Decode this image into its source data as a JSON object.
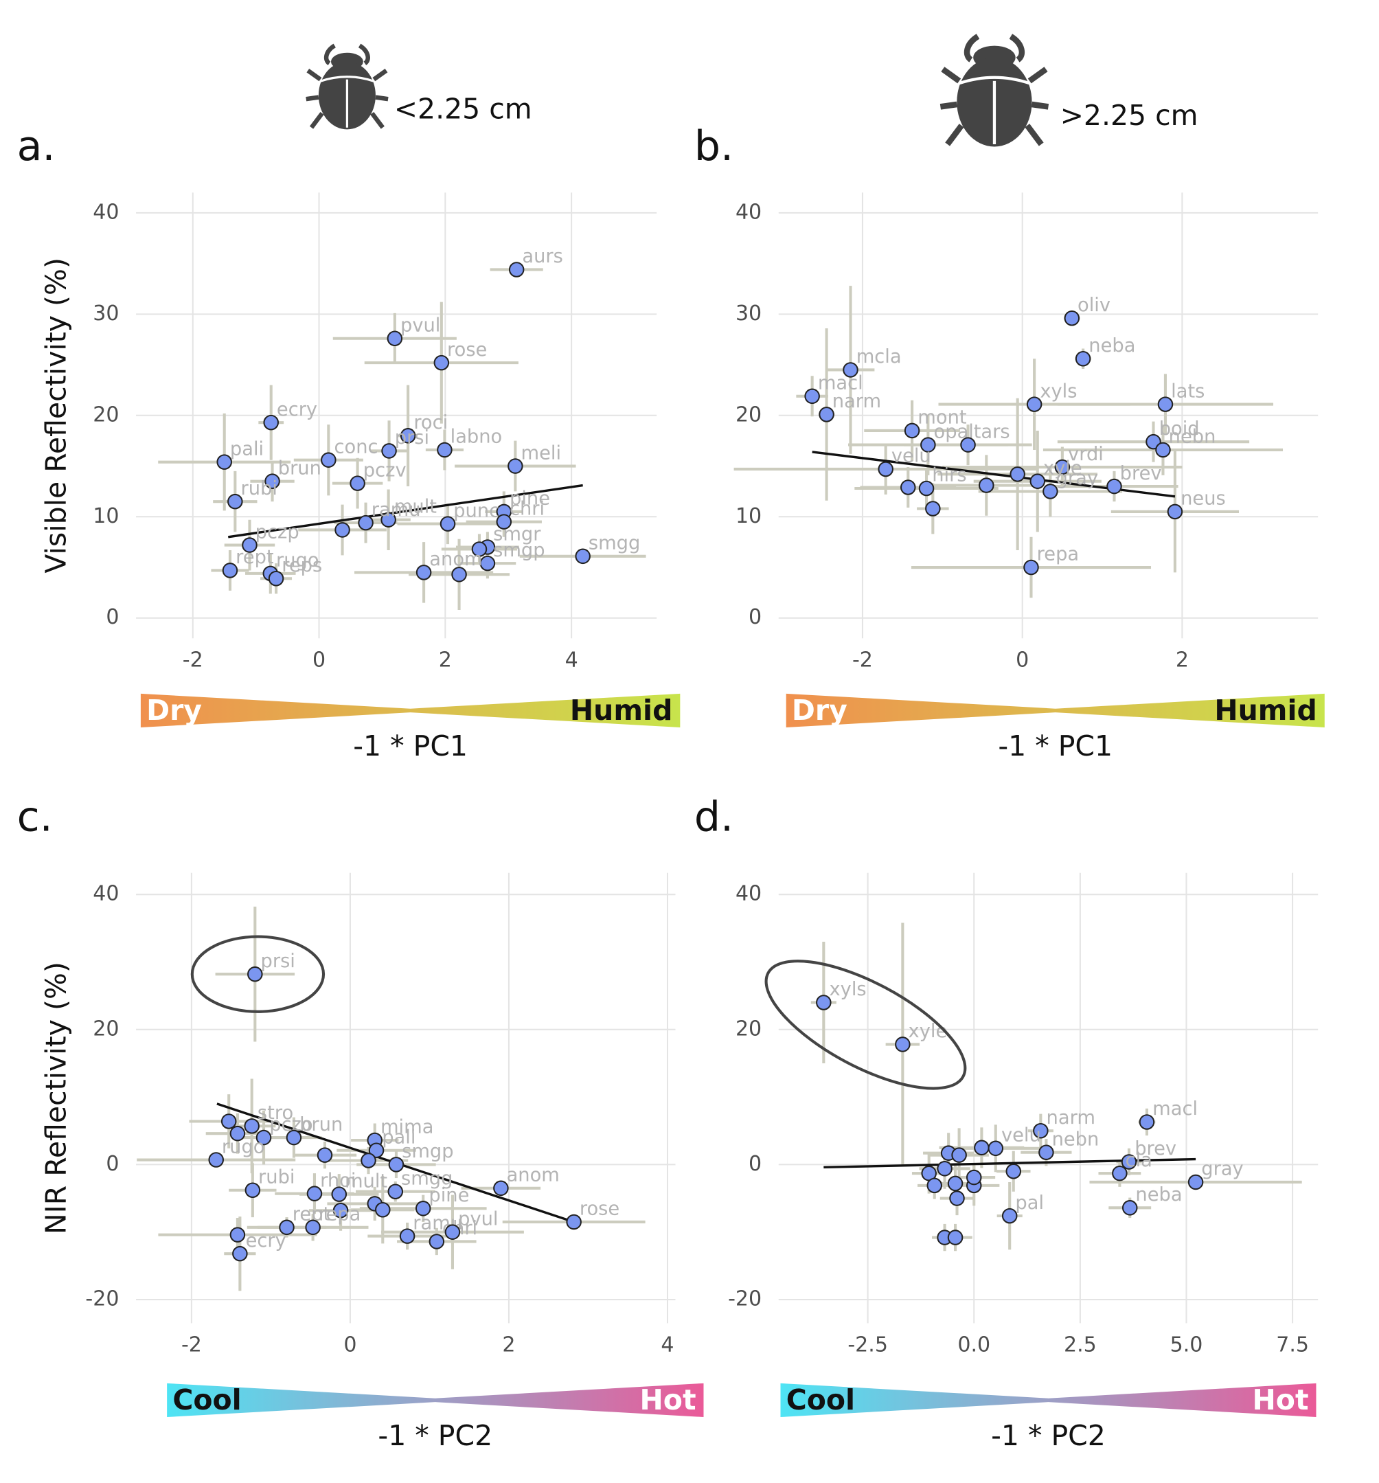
{
  "chart_data": [
    {
      "type": "scatter",
      "panel": "a.",
      "size_label": "<2.25 cm",
      "ylabel": "Visible Reflectivity (%)",
      "xlabel": "-1 * PC1",
      "gradient_labels": [
        "Dry",
        "Humid"
      ],
      "gradient_colors": [
        "#f0904e",
        "#c8e44c"
      ],
      "gradient_text_colors": [
        "#ffffff",
        "#111111"
      ],
      "color": "#7b96f0",
      "error_color": "#ccccbe",
      "xlim": [
        -2.9,
        5.35
      ],
      "ylim": [
        -2,
        42
      ],
      "xticks": [
        -2,
        0,
        2,
        4
      ],
      "yticks": [
        0,
        10,
        20,
        30,
        40
      ],
      "point_labels": [
        "aurs",
        "pvul",
        "rose",
        "ecry",
        "roci",
        "prsi",
        "labno",
        "conc",
        "pali",
        "meli",
        "brun",
        "pczv",
        "rubi",
        "pine",
        "chri",
        "punc",
        "mult",
        "ramu",
        null,
        "pczp",
        "smgr",
        null,
        "smgp",
        "smgg",
        "anom",
        null,
        "rept",
        "rugo",
        "reps"
      ],
      "x": [
        3.13,
        1.2,
        1.94,
        -0.76,
        1.41,
        1.11,
        1.99,
        0.15,
        -1.5,
        3.11,
        -0.74,
        0.61,
        -1.33,
        2.93,
        2.93,
        2.04,
        1.1,
        0.74,
        0.37,
        -1.1,
        2.67,
        2.54,
        2.67,
        4.18,
        1.66,
        2.22,
        -1.41,
        -0.77,
        -0.68
      ],
      "values": [
        34.4,
        27.6,
        25.2,
        19.3,
        18.0,
        16.5,
        16.6,
        15.6,
        15.4,
        15.0,
        13.5,
        13.3,
        11.5,
        10.5,
        9.5,
        9.3,
        9.7,
        9.4,
        8.7,
        7.2,
        7.0,
        6.8,
        5.4,
        6.1,
        4.5,
        4.3,
        4.7,
        4.4,
        3.9
      ],
      "xerr": [
        0.42,
        0.98,
        1.22,
        0.2,
        0.15,
        0.3,
        0.3,
        0.55,
        1.05,
        0.96,
        0.35,
        0.4,
        0.35,
        0.3,
        0.6,
        0.8,
        0.35,
        0.5,
        0.7,
        0.4,
        0.5,
        0.6,
        0.45,
        1.0,
        1.1,
        0.8,
        0.3,
        0.4,
        0.25
      ],
      "yerr": [
        0,
        2.5,
        6,
        3.7,
        5,
        3,
        2,
        3.5,
        4.8,
        2.5,
        2,
        2.5,
        3,
        2,
        1.5,
        2,
        3,
        2,
        2.5,
        2.5,
        1.5,
        1.5,
        1.5,
        0.5,
        3,
        3.5,
        2,
        2,
        1.5
      ],
      "trend": {
        "x": [
          -1.44,
          4.18
        ],
        "y": [
          8.0,
          13.1
        ]
      },
      "highlight": []
    },
    {
      "type": "scatter",
      "panel": "b.",
      "size_label": ">2.25 cm",
      "xlabel": "-1 * PC1",
      "gradient_labels": [
        "Dry",
        "Humid"
      ],
      "gradient_colors": [
        "#f0904e",
        "#c8e44c"
      ],
      "gradient_text_colors": [
        "#ffffff",
        "#111111"
      ],
      "color": "#7b96f0",
      "error_color": "#ccccbe",
      "xlim": [
        -3.05,
        3.7
      ],
      "ylim": [
        -2,
        42
      ],
      "xticks": [
        -2,
        0,
        2
      ],
      "yticks": [
        0,
        10,
        20,
        30,
        40
      ],
      "point_labels": [
        "oliv",
        "neba",
        "mcla",
        "macl",
        "narm",
        "xyls",
        "lats",
        "mont",
        "opal",
        "tars",
        "boid",
        "nebn",
        "velu",
        "vrdi",
        null,
        "xyle",
        "gray",
        "brev",
        null,
        "hirs",
        null,
        null,
        "neus",
        "repa"
      ],
      "x": [
        0.62,
        0.76,
        -2.15,
        -2.63,
        -2.45,
        0.15,
        1.79,
        -1.38,
        -1.18,
        -0.68,
        1.64,
        1.76,
        -1.71,
        0.5,
        -0.06,
        0.19,
        0.35,
        1.15,
        -1.43,
        -1.2,
        -0.45,
        -1.12,
        1.91,
        0.11
      ],
      "values": [
        29.6,
        25.6,
        24.5,
        21.9,
        20.1,
        21.1,
        21.1,
        18.5,
        17.1,
        17.1,
        17.4,
        16.6,
        14.7,
        14.9,
        14.2,
        13.5,
        12.5,
        13.0,
        12.9,
        12.8,
        13.1,
        10.8,
        10.5,
        5.0
      ],
      "xerr": [
        0.1,
        0.1,
        0.3,
        0.2,
        0.1,
        1.2,
        1.35,
        0.6,
        1.0,
        0.8,
        1.2,
        1.5,
        1.9,
        1.5,
        1.0,
        0.8,
        0.9,
        0.8,
        0.6,
        0.9,
        0.7,
        0.2,
        0.8,
        1.5
      ],
      "yerr": [
        0,
        1,
        8.3,
        2,
        8.5,
        4.5,
        3,
        3,
        3,
        2,
        2,
        2.5,
        2.5,
        2,
        7.5,
        5,
        2.5,
        1.5,
        2,
        2,
        3,
        2.5,
        6,
        3
      ],
      "trend": {
        "x": [
          -2.63,
          1.91
        ],
        "y": [
          16.4,
          12.0
        ]
      },
      "highlight": []
    },
    {
      "type": "scatter",
      "panel": "c.",
      "ylabel": "NIR Reflectivity (%)",
      "xlabel": "-1 * PC2",
      "gradient_labels": [
        "Cool",
        "Hot"
      ],
      "gradient_colors": [
        "#4ee4f4",
        "#ea5a98"
      ],
      "gradient_text_colors": [
        "#111111",
        "#ffffff"
      ],
      "color": "#7b96f0",
      "error_color": "#ccccbe",
      "xlim": [
        -2.7,
        4.1
      ],
      "ylim": [
        -23.5,
        43.2
      ],
      "xticks": [
        -2,
        0,
        2,
        4
      ],
      "yticks": [
        -20,
        0,
        20,
        40
      ],
      "point_labels": [
        "prsi",
        null,
        null,
        "stro",
        "pczo",
        "brun",
        "rugo",
        "rubi",
        "mima",
        "pali",
        null,
        null,
        "smgp",
        "anom",
        "rose",
        "smgg",
        "rhoi",
        "mult",
        null,
        null,
        null,
        "pine",
        "rept",
        "repa",
        "ecry",
        null,
        "ramu",
        "chri",
        "pvul"
      ],
      "x": [
        -1.2,
        -1.53,
        -1.42,
        -1.24,
        -1.09,
        -0.71,
        -1.69,
        -1.23,
        0.31,
        0.33,
        -0.32,
        0.23,
        0.58,
        1.9,
        2.82,
        0.57,
        -0.45,
        -0.14,
        -0.12,
        0.31,
        0.41,
        0.92,
        -0.8,
        -0.47,
        -1.39,
        -1.42,
        0.72,
        1.09,
        1.29
      ],
      "values": [
        28.2,
        6.4,
        4.6,
        5.7,
        4.0,
        4.0,
        0.7,
        -3.8,
        3.6,
        2.1,
        1.4,
        0.6,
        0,
        -3.5,
        -8.5,
        -4.0,
        -4.3,
        -4.4,
        -6.8,
        -5.8,
        -6.7,
        -6.5,
        -9.3,
        -9.3,
        -13.2,
        -10.4,
        -10.6,
        -11.4,
        -10.0
      ],
      "xerr": [
        0.5,
        0.5,
        0.4,
        0.3,
        0.4,
        0.35,
        1.0,
        0.3,
        0.3,
        0.5,
        0.4,
        0.5,
        0.5,
        0.5,
        0.9,
        0.5,
        0.5,
        0.5,
        0.4,
        0.6,
        0.4,
        0.8,
        0.5,
        0.7,
        0.2,
        1.0,
        0.5,
        0.5,
        0.9
      ],
      "yerr": [
        10,
        4,
        3,
        7,
        4,
        3,
        1,
        4,
        2.5,
        1.5,
        2,
        2,
        2,
        0.5,
        1,
        1.5,
        3,
        3,
        3,
        2.5,
        5,
        2,
        1.5,
        2,
        5.5,
        2.5,
        2,
        2,
        5.5
      ],
      "trend": {
        "x": [
          -1.68,
          2.82
        ],
        "y": [
          9.0,
          -8.5
        ]
      },
      "highlight": [
        0
      ]
    },
    {
      "type": "scatter",
      "panel": "d.",
      "xlabel": "-1 * PC2",
      "gradient_labels": [
        "Cool",
        "Hot"
      ],
      "gradient_colors": [
        "#4ee4f4",
        "#ea5a98"
      ],
      "gradient_text_colors": [
        "#111111",
        "#ffffff"
      ],
      "color": "#7b96f0",
      "error_color": "#ccccbe",
      "xlim": [
        -4.6,
        8.1
      ],
      "ylim": [
        -23.5,
        43.2
      ],
      "xticks": [
        -2.5,
        {
          "value": 0,
          "label": "0.0"
        },
        2.5,
        {
          "value": 5,
          "label": "5.0"
        },
        7.5
      ],
      "yticks": [
        -20,
        0,
        20,
        40
      ],
      "point_labels": [
        "xyls",
        "xyle",
        "macl",
        "narm",
        "nebn",
        "brev",
        "cla",
        "gray",
        "neba",
        null,
        null,
        null,
        "velu",
        null,
        null,
        null,
        null,
        null,
        null,
        null,
        null,
        "pal",
        null,
        null
      ],
      "x": [
        -3.54,
        -1.68,
        4.07,
        1.57,
        1.7,
        3.65,
        3.43,
        5.22,
        3.67,
        -0.6,
        -0.35,
        0.18,
        0.51,
        -1.06,
        -0.93,
        -0.69,
        -0.44,
        -0.4,
        0,
        0,
        0.93,
        0.84,
        -0.69,
        -0.44
      ],
      "values": [
        24.0,
        17.8,
        6.3,
        5.0,
        1.8,
        0.4,
        -1.3,
        -2.6,
        -6.4,
        1.7,
        1.4,
        2.5,
        2.4,
        -1.3,
        -3.1,
        -0.6,
        -2.8,
        -5.0,
        -3.1,
        -1.9,
        -1.0,
        -7.6,
        -10.8,
        -10.8
      ],
      "xerr": [
        0.3,
        0.4,
        0.2,
        0.3,
        0.6,
        0.3,
        0.5,
        2.5,
        0.5,
        0.6,
        0.7,
        1.0,
        1.2,
        0.4,
        0.4,
        0.6,
        0.5,
        0.4,
        0.6,
        0.5,
        0.4,
        0.3,
        0.3,
        0.4
      ],
      "yerr": [
        9,
        18,
        2,
        2.5,
        2,
        2,
        2,
        0.3,
        1.5,
        3,
        4,
        3,
        3.5,
        3,
        2,
        3,
        3,
        2.5,
        3,
        2,
        3,
        5,
        2,
        2
      ],
      "trend": {
        "x": [
          -3.54,
          5.22
        ],
        "y": [
          -0.4,
          0.8
        ]
      },
      "highlight": [
        0,
        1
      ]
    }
  ]
}
